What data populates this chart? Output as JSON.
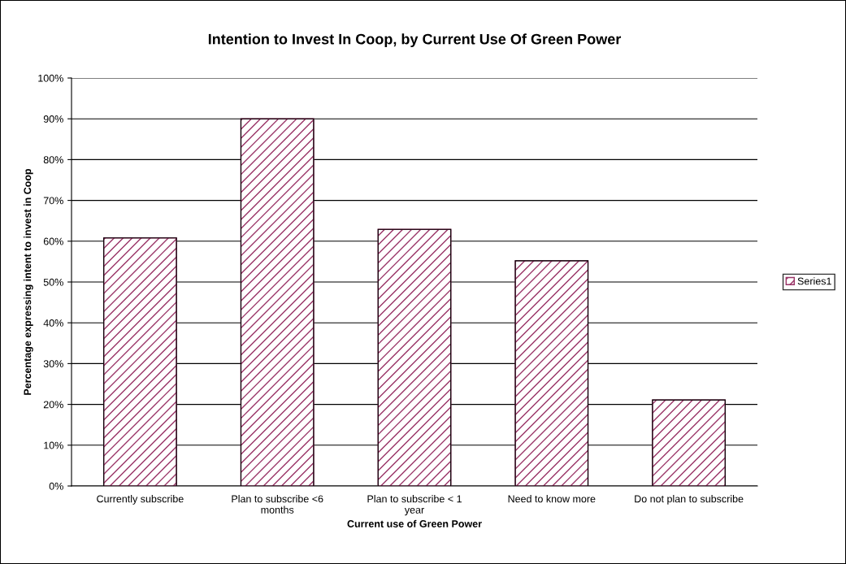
{
  "chart_data": {
    "type": "bar",
    "title": "Intention to Invest In Coop, by Current Use Of Green Power",
    "xlabel": "Current use of Green Power",
    "ylabel": "Percentage expressing intent to invest in Coop",
    "categories": [
      "Currently subscribe",
      "Plan to subscribe <6 months",
      "Plan to subscribe < 1 year",
      "Need to know more",
      "Do not plan to subscribe"
    ],
    "series": [
      {
        "name": "Series1",
        "color": "#993366",
        "values": [
          60.8,
          90,
          62.9,
          55.2,
          21.1
        ]
      }
    ],
    "ylim": [
      0,
      100
    ],
    "yticks": [
      {
        "value": 0,
        "label": "0%"
      },
      {
        "value": 10,
        "label": "10%"
      },
      {
        "value": 20,
        "label": "20%"
      },
      {
        "value": 30,
        "label": "30%"
      },
      {
        "value": 40,
        "label": "40%"
      },
      {
        "value": 50,
        "label": "50%"
      },
      {
        "value": 60,
        "label": "60%"
      },
      {
        "value": 70,
        "label": "70%"
      },
      {
        "value": 80,
        "label": "80%"
      },
      {
        "value": 90,
        "label": "90%"
      },
      {
        "value": 100,
        "label": "100%"
      }
    ],
    "grid": "y",
    "legend": "right"
  }
}
